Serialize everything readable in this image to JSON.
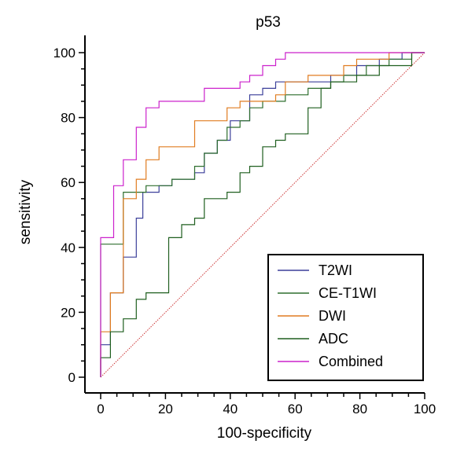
{
  "chart_data": {
    "type": "line",
    "title": "p53",
    "xlabel": "100-specificity",
    "ylabel": "sensitivity",
    "xlim": [
      0,
      100
    ],
    "ylim": [
      0,
      100
    ],
    "xticks": [
      0,
      20,
      40,
      60,
      80,
      100
    ],
    "yticks": [
      0,
      20,
      40,
      60,
      80,
      100
    ],
    "grid": false,
    "legend_position": "bottom-right",
    "diagonal_reference": {
      "color": "#cc3333",
      "style": "dotted"
    },
    "series": [
      {
        "name": "T2WI",
        "color": "#3b3f9a",
        "points": [
          [
            0,
            0
          ],
          [
            0,
            10
          ],
          [
            3,
            10
          ],
          [
            3,
            26
          ],
          [
            7,
            26
          ],
          [
            7,
            37
          ],
          [
            11,
            37
          ],
          [
            11,
            49
          ],
          [
            13,
            49
          ],
          [
            13,
            57
          ],
          [
            18,
            57
          ],
          [
            18,
            59
          ],
          [
            22,
            59
          ],
          [
            22,
            61
          ],
          [
            29,
            61
          ],
          [
            29,
            63
          ],
          [
            32,
            63
          ],
          [
            32,
            69
          ],
          [
            36,
            69
          ],
          [
            36,
            73
          ],
          [
            40,
            73
          ],
          [
            40,
            79
          ],
          [
            46,
            79
          ],
          [
            46,
            87
          ],
          [
            50,
            87
          ],
          [
            50,
            89
          ],
          [
            54,
            89
          ],
          [
            54,
            91
          ],
          [
            61,
            91
          ],
          [
            61,
            91
          ],
          [
            71,
            91
          ],
          [
            71,
            93
          ],
          [
            79,
            93
          ],
          [
            79,
            96
          ],
          [
            86,
            96
          ],
          [
            86,
            98
          ],
          [
            93,
            98
          ],
          [
            93,
            100
          ],
          [
            100,
            100
          ]
        ]
      },
      {
        "name": "CE-T1WI",
        "color": "#2e6e2e",
        "points": [
          [
            0,
            0
          ],
          [
            0,
            41
          ],
          [
            7,
            41
          ],
          [
            7,
            57
          ],
          [
            14,
            57
          ],
          [
            14,
            59
          ],
          [
            22,
            59
          ],
          [
            22,
            61
          ],
          [
            29,
            61
          ],
          [
            29,
            65
          ],
          [
            32,
            65
          ],
          [
            32,
            69
          ],
          [
            36,
            69
          ],
          [
            36,
            73
          ],
          [
            39,
            73
          ],
          [
            39,
            77
          ],
          [
            43,
            77
          ],
          [
            43,
            79
          ],
          [
            46,
            79
          ],
          [
            46,
            83
          ],
          [
            50,
            83
          ],
          [
            50,
            85
          ],
          [
            57,
            85
          ],
          [
            57,
            87
          ],
          [
            64,
            87
          ],
          [
            64,
            89
          ],
          [
            71,
            89
          ],
          [
            71,
            91
          ],
          [
            75,
            91
          ],
          [
            75,
            93
          ],
          [
            82,
            93
          ],
          [
            82,
            96
          ],
          [
            89,
            96
          ],
          [
            89,
            98
          ],
          [
            96,
            98
          ],
          [
            96,
            100
          ],
          [
            100,
            100
          ]
        ]
      },
      {
        "name": "DWI",
        "color": "#e07c20",
        "points": [
          [
            0,
            0
          ],
          [
            0,
            14
          ],
          [
            3,
            14
          ],
          [
            3,
            26
          ],
          [
            7,
            26
          ],
          [
            7,
            55
          ],
          [
            11,
            55
          ],
          [
            11,
            61
          ],
          [
            14,
            61
          ],
          [
            14,
            67
          ],
          [
            18,
            67
          ],
          [
            18,
            71
          ],
          [
            29,
            71
          ],
          [
            29,
            79
          ],
          [
            39,
            79
          ],
          [
            39,
            83
          ],
          [
            43,
            83
          ],
          [
            43,
            85
          ],
          [
            54,
            85
          ],
          [
            54,
            87
          ],
          [
            57,
            87
          ],
          [
            57,
            91
          ],
          [
            64,
            91
          ],
          [
            64,
            93
          ],
          [
            75,
            93
          ],
          [
            75,
            96
          ],
          [
            79,
            96
          ],
          [
            79,
            98
          ],
          [
            89,
            98
          ],
          [
            89,
            100
          ],
          [
            100,
            100
          ]
        ]
      },
      {
        "name": "ADC",
        "color": "#1f5f1f",
        "points": [
          [
            0,
            0
          ],
          [
            0,
            6
          ],
          [
            3,
            6
          ],
          [
            3,
            14
          ],
          [
            7,
            14
          ],
          [
            7,
            18
          ],
          [
            11,
            18
          ],
          [
            11,
            24
          ],
          [
            14,
            24
          ],
          [
            14,
            26
          ],
          [
            21,
            26
          ],
          [
            21,
            43
          ],
          [
            25,
            43
          ],
          [
            25,
            47
          ],
          [
            29,
            47
          ],
          [
            29,
            49
          ],
          [
            32,
            49
          ],
          [
            32,
            55
          ],
          [
            39,
            55
          ],
          [
            39,
            57
          ],
          [
            43,
            57
          ],
          [
            43,
            63
          ],
          [
            46,
            63
          ],
          [
            46,
            65
          ],
          [
            50,
            65
          ],
          [
            50,
            71
          ],
          [
            54,
            71
          ],
          [
            54,
            73
          ],
          [
            57,
            73
          ],
          [
            57,
            75
          ],
          [
            64,
            75
          ],
          [
            64,
            83
          ],
          [
            68,
            83
          ],
          [
            68,
            89
          ],
          [
            71,
            89
          ],
          [
            71,
            91
          ],
          [
            79,
            91
          ],
          [
            79,
            93
          ],
          [
            86,
            93
          ],
          [
            86,
            96
          ],
          [
            96,
            96
          ],
          [
            96,
            100
          ],
          [
            100,
            100
          ]
        ]
      },
      {
        "name": "Combined",
        "color": "#cc22cc",
        "points": [
          [
            0,
            0
          ],
          [
            0,
            43
          ],
          [
            4,
            43
          ],
          [
            4,
            59
          ],
          [
            7,
            59
          ],
          [
            7,
            67
          ],
          [
            11,
            67
          ],
          [
            11,
            77
          ],
          [
            14,
            77
          ],
          [
            14,
            83
          ],
          [
            18,
            83
          ],
          [
            18,
            85
          ],
          [
            32,
            85
          ],
          [
            32,
            89
          ],
          [
            43,
            89
          ],
          [
            43,
            91
          ],
          [
            46,
            91
          ],
          [
            46,
            93
          ],
          [
            50,
            93
          ],
          [
            50,
            96
          ],
          [
            54,
            96
          ],
          [
            54,
            98
          ],
          [
            57,
            98
          ],
          [
            57,
            100
          ],
          [
            100,
            100
          ]
        ]
      }
    ]
  }
}
